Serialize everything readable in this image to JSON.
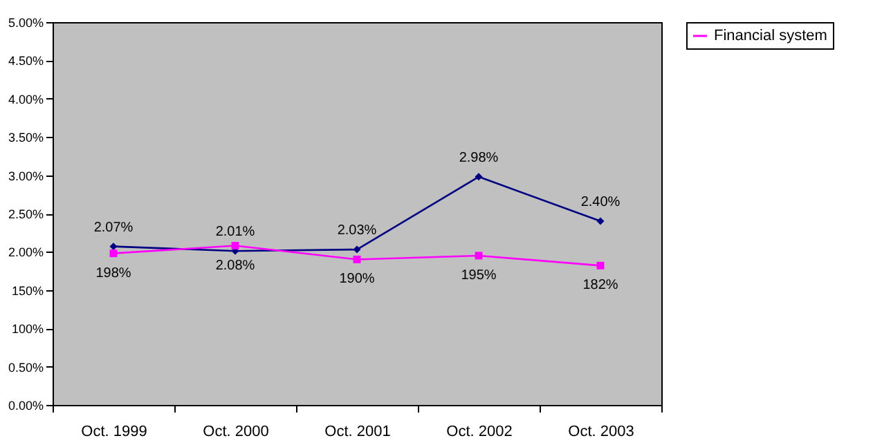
{
  "chart_data": {
    "type": "line",
    "categories": [
      "Oct. 1999",
      "Oct. 2000",
      "Oct. 2001",
      "Oct. 2002",
      "Oct. 2003"
    ],
    "series": [
      {
        "color": "#000080",
        "marker": "diamond",
        "values": [
          2.07,
          2.01,
          2.03,
          2.98,
          2.4
        ],
        "value_labels": [
          "2.07%",
          "2.01%",
          "2.03%",
          "2.98%",
          "2.40%"
        ]
      },
      {
        "name": "Financial system",
        "color": "#ff00ff",
        "marker": "square",
        "values": [
          1.98,
          2.08,
          1.9,
          1.95,
          1.82
        ],
        "value_labels": [
          "198%",
          "2.08%",
          "190%",
          "195%",
          "182%"
        ]
      }
    ],
    "ylim": [
      0,
      5
    ],
    "yticks": [
      {
        "value": 0,
        "label": "0.00%"
      },
      {
        "value": 0.5,
        "label": "0.50%"
      },
      {
        "value": 1,
        "label": "100%"
      },
      {
        "value": 1.5,
        "label": "150%"
      },
      {
        "value": 2,
        "label": "2.00%"
      },
      {
        "value": 2.5,
        "label": "2.50%"
      },
      {
        "value": 3,
        "label": "3.00%"
      },
      {
        "value": 3.5,
        "label": "3.50%"
      },
      {
        "value": 4,
        "label": "4.00%"
      },
      {
        "value": 4.5,
        "label": "4.50%"
      },
      {
        "value": 5,
        "label": "5.00%"
      }
    ],
    "grid": false,
    "legend": "right",
    "line_style": "solid"
  }
}
